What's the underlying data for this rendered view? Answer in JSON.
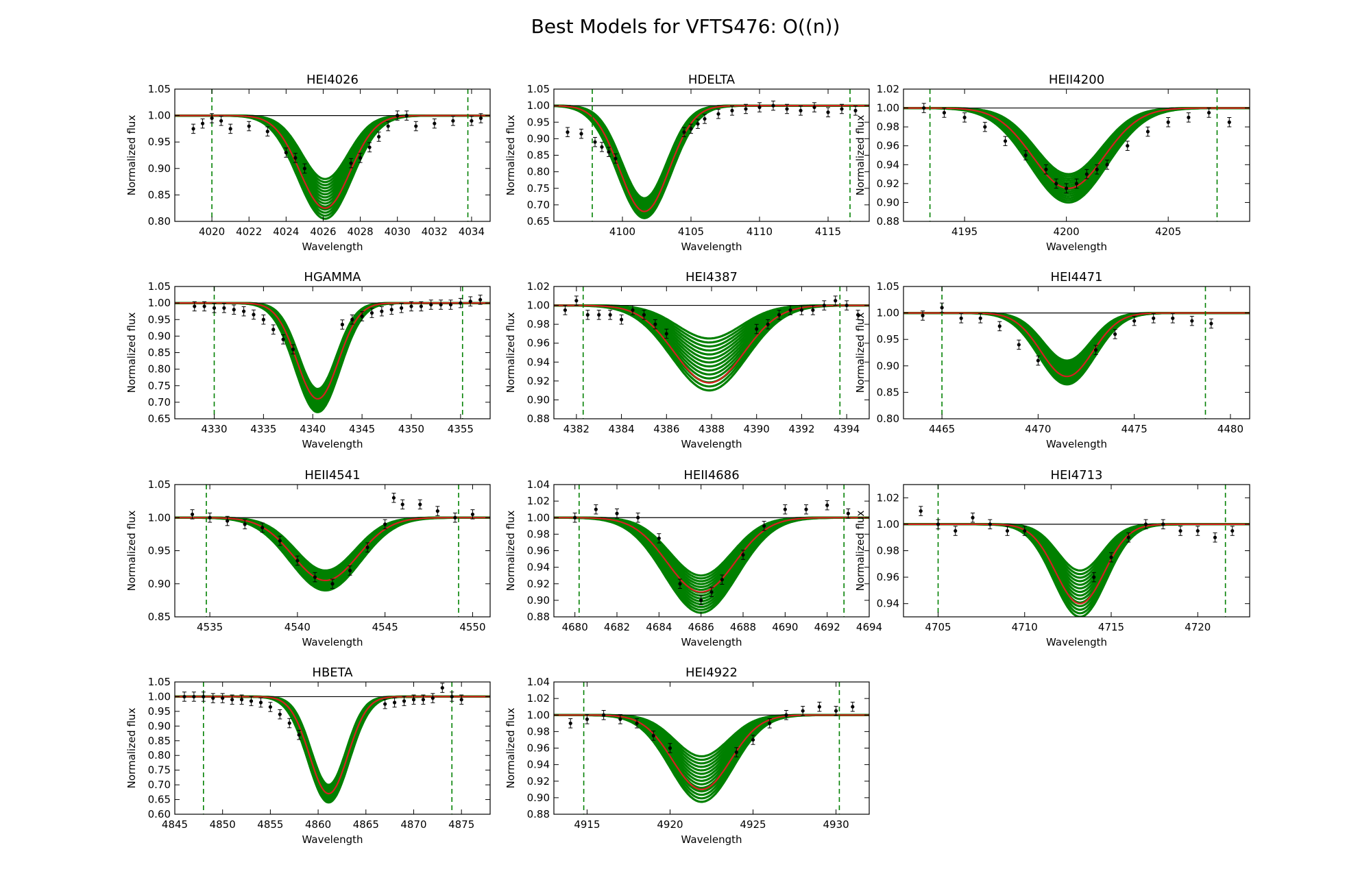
{
  "figure_title": "Best Models for VFTS476: O((n))",
  "colors": {
    "model_band": "#008000",
    "best_fit": "#d62020",
    "continuum": "#000000",
    "data": "#000000",
    "window": "#008000"
  },
  "chart_data": [
    {
      "type": "line",
      "title": "HEI4026",
      "xlabel": "Wavelength",
      "ylabel": "Normalized flux",
      "xlim": [
        4018,
        4035
      ],
      "ylim": [
        0.8,
        1.05
      ],
      "xticks": [
        4020,
        4022,
        4024,
        4026,
        4028,
        4030,
        4032,
        4034
      ],
      "yticks": [
        0.8,
        0.85,
        0.9,
        0.95,
        1.0,
        1.05
      ],
      "ytick_decimals": 2,
      "window": [
        4020,
        4033.8
      ],
      "line": {
        "center": 4026.1,
        "sigma": 1.35,
        "best_depth": 0.175,
        "min_depth": 0.12,
        "max_depth": 0.195
      },
      "data": {
        "x": [
          4019,
          4019.5,
          4020,
          4020.5,
          4021,
          4022,
          4023,
          4024,
          4024.5,
          4025,
          4027.5,
          4028,
          4028.5,
          4029,
          4029.5,
          4030,
          4030.5,
          4031,
          4032,
          4033,
          4034,
          4034.5
        ],
        "y": [
          0.975,
          0.985,
          0.995,
          0.99,
          0.975,
          0.98,
          0.97,
          0.93,
          0.92,
          0.9,
          0.91,
          0.92,
          0.94,
          0.96,
          0.98,
          1.0,
          1.0,
          0.98,
          0.985,
          0.99,
          0.99,
          0.995
        ]
      }
    },
    {
      "type": "line",
      "title": "HDELTA",
      "xlabel": "Wavelength",
      "ylabel": "Normalized flux",
      "xlim": [
        4095,
        4118
      ],
      "ylim": [
        0.65,
        1.05
      ],
      "xticks": [
        4100,
        4105,
        4110,
        4115
      ],
      "yticks": [
        0.65,
        0.7,
        0.75,
        0.8,
        0.85,
        0.9,
        0.95,
        1.0,
        1.05
      ],
      "ytick_decimals": 2,
      "window": [
        4097.8,
        4116.6
      ],
      "line": {
        "center": 4101.6,
        "sigma": 1.8,
        "best_depth": 0.32,
        "min_depth": 0.28,
        "max_depth": 0.34
      },
      "data": {
        "x": [
          4096,
          4097,
          4098,
          4098.5,
          4099,
          4099.5,
          4104.5,
          4105,
          4105.5,
          4106,
          4107,
          4108,
          4109,
          4110,
          4111,
          4112,
          4113,
          4114,
          4115,
          4116,
          4117
        ],
        "y": [
          0.92,
          0.915,
          0.89,
          0.875,
          0.86,
          0.84,
          0.92,
          0.93,
          0.945,
          0.96,
          0.975,
          0.985,
          0.99,
          0.995,
          1.0,
          0.99,
          0.985,
          0.995,
          0.98,
          0.99,
          0.985
        ]
      }
    },
    {
      "type": "line",
      "title": "HEII4200",
      "xlabel": "Wavelength",
      "ylabel": "Normalized flux",
      "xlim": [
        4192,
        4209
      ],
      "ylim": [
        0.88,
        1.02
      ],
      "xticks": [
        4195,
        4200,
        4205
      ],
      "yticks": [
        0.88,
        0.9,
        0.92,
        0.94,
        0.96,
        0.98,
        1.0,
        1.02
      ],
      "ytick_decimals": 2,
      "window": [
        4193.3,
        4207.4
      ],
      "line": {
        "center": 4200.1,
        "sigma": 1.75,
        "best_depth": 0.085,
        "min_depth": 0.07,
        "max_depth": 0.1
      },
      "data": {
        "x": [
          4193,
          4194,
          4195,
          4196,
          4197,
          4198,
          4199,
          4199.5,
          4200,
          4200.5,
          4201,
          4201.5,
          4202,
          4203,
          4204,
          4205,
          4206,
          4207,
          4208
        ],
        "y": [
          1.0,
          0.995,
          0.99,
          0.98,
          0.965,
          0.95,
          0.935,
          0.92,
          0.915,
          0.92,
          0.93,
          0.935,
          0.94,
          0.96,
          0.975,
          0.985,
          0.99,
          0.995,
          0.985
        ]
      }
    },
    {
      "type": "line",
      "title": "HGAMMA",
      "xlabel": "Wavelength",
      "ylabel": "Normalized flux",
      "xlim": [
        4326,
        4358
      ],
      "ylim": [
        0.65,
        1.05
      ],
      "xticks": [
        4330,
        4335,
        4340,
        4345,
        4350,
        4355
      ],
      "yticks": [
        0.65,
        0.7,
        0.75,
        0.8,
        0.85,
        0.9,
        0.95,
        1.0,
        1.05
      ],
      "ytick_decimals": 2,
      "window": [
        4330.0,
        4355.2
      ],
      "line": {
        "center": 4340.5,
        "sigma": 2.1,
        "best_depth": 0.29,
        "min_depth": 0.26,
        "max_depth": 0.33
      },
      "data": {
        "x": [
          4328,
          4329,
          4330,
          4331,
          4332,
          4333,
          4334,
          4335,
          4336,
          4337,
          4338,
          4343,
          4344,
          4345,
          4346,
          4347,
          4348,
          4349,
          4350,
          4351,
          4352,
          4353,
          4354,
          4355,
          4356,
          4357
        ],
        "y": [
          0.99,
          0.99,
          0.985,
          0.985,
          0.98,
          0.975,
          0.965,
          0.95,
          0.92,
          0.89,
          0.86,
          0.935,
          0.95,
          0.96,
          0.97,
          0.975,
          0.98,
          0.985,
          0.99,
          0.99,
          0.995,
          0.995,
          0.995,
          1.0,
          1.005,
          1.01
        ]
      }
    },
    {
      "type": "line",
      "title": "HEI4387",
      "xlabel": "Wavelength",
      "ylabel": "Normalized flux",
      "xlim": [
        4381,
        4395
      ],
      "ylim": [
        0.88,
        1.02
      ],
      "xticks": [
        4382,
        4384,
        4386,
        4388,
        4390,
        4392,
        4394
      ],
      "yticks": [
        0.88,
        0.9,
        0.92,
        0.94,
        0.96,
        0.98,
        1.0,
        1.02
      ],
      "ytick_decimals": 2,
      "window": [
        4382.3,
        4393.7
      ],
      "line": {
        "center": 4387.9,
        "sigma": 1.55,
        "best_depth": 0.082,
        "min_depth": 0.035,
        "max_depth": 0.09
      },
      "data": {
        "x": [
          4381.5,
          4382,
          4382.5,
          4383,
          4383.5,
          4384,
          4384.5,
          4385,
          4385.5,
          4386,
          4390,
          4390.5,
          4391,
          4391.5,
          4392,
          4392.5,
          4393,
          4393.5,
          4394,
          4394.5
        ],
        "y": [
          0.995,
          1.005,
          0.99,
          0.99,
          0.99,
          0.985,
          0.995,
          0.99,
          0.98,
          0.97,
          0.975,
          0.98,
          0.99,
          0.995,
          0.995,
          0.995,
          1.0,
          1.005,
          1.0,
          0.99
        ]
      }
    },
    {
      "type": "line",
      "title": "HEI4471",
      "xlabel": "Wavelength",
      "ylabel": "Normalized flux",
      "xlim": [
        4463,
        4481
      ],
      "ylim": [
        0.8,
        1.05
      ],
      "xticks": [
        4465,
        4470,
        4475,
        4480
      ],
      "yticks": [
        0.8,
        0.85,
        0.9,
        0.95,
        1.0,
        1.05
      ],
      "ytick_decimals": 2,
      "window": [
        4465.0,
        4478.7
      ],
      "line": {
        "center": 4471.5,
        "sigma": 1.35,
        "best_depth": 0.12,
        "min_depth": 0.09,
        "max_depth": 0.135
      },
      "data": {
        "x": [
          4464,
          4465,
          4466,
          4467,
          4468,
          4469,
          4470,
          4473,
          4474,
          4475,
          4476,
          4477,
          4478,
          4479
        ],
        "y": [
          0.995,
          1.01,
          0.99,
          0.99,
          0.975,
          0.94,
          0.91,
          0.93,
          0.96,
          0.985,
          0.99,
          0.99,
          0.985,
          0.98
        ]
      }
    },
    {
      "type": "line",
      "title": "HEII4541",
      "xlabel": "Wavelength",
      "ylabel": "Normalized flux",
      "xlim": [
        4533,
        4551
      ],
      "ylim": [
        0.85,
        1.05
      ],
      "xticks": [
        4535,
        4540,
        4545,
        4550
      ],
      "yticks": [
        0.85,
        0.9,
        0.95,
        1.0,
        1.05
      ],
      "ytick_decimals": 2,
      "window": [
        4534.8,
        4549.2
      ],
      "line": {
        "center": 4541.6,
        "sigma": 1.85,
        "best_depth": 0.095,
        "min_depth": 0.08,
        "max_depth": 0.11
      },
      "data": {
        "x": [
          4534,
          4535,
          4536,
          4537,
          4538,
          4539,
          4540,
          4541,
          4542,
          4543,
          4544,
          4545,
          4545.5,
          4546,
          4547,
          4548,
          4549,
          4550
        ],
        "y": [
          1.005,
          1.0,
          0.995,
          0.99,
          0.985,
          0.965,
          0.935,
          0.91,
          0.9,
          0.92,
          0.955,
          0.99,
          1.03,
          1.02,
          1.02,
          1.01,
          1.0,
          1.005
        ]
      }
    },
    {
      "type": "line",
      "title": "HEII4686",
      "xlabel": "Wavelength",
      "ylabel": "Normalized flux",
      "xlim": [
        4679,
        4694
      ],
      "ylim": [
        0.88,
        1.04
      ],
      "xticks": [
        4680,
        4682,
        4684,
        4686,
        4688,
        4690,
        4692,
        4694
      ],
      "yticks": [
        0.88,
        0.9,
        0.92,
        0.94,
        0.96,
        0.98,
        1.0,
        1.02,
        1.04
      ],
      "ytick_decimals": 2,
      "window": [
        4680.2,
        4692.8
      ],
      "line": {
        "center": 4686.0,
        "sigma": 1.6,
        "best_depth": 0.09,
        "min_depth": 0.07,
        "max_depth": 0.115
      },
      "data": {
        "x": [
          4680,
          4681,
          4682,
          4683,
          4684,
          4685,
          4686,
          4686.5,
          4687,
          4688,
          4689,
          4690,
          4691,
          4692,
          4693
        ],
        "y": [
          1.0,
          1.01,
          1.005,
          1.0,
          0.975,
          0.92,
          0.9,
          0.91,
          0.925,
          0.955,
          0.99,
          1.01,
          1.01,
          1.015,
          1.005
        ]
      }
    },
    {
      "type": "line",
      "title": "HEI4713",
      "xlabel": "Wavelength",
      "ylabel": "Normalized flux",
      "xlim": [
        4703,
        4723
      ],
      "ylim": [
        0.93,
        1.03
      ],
      "xticks": [
        4705,
        4710,
        4715,
        4720
      ],
      "yticks": [
        0.94,
        0.96,
        0.98,
        1.0,
        1.02
      ],
      "ytick_decimals": 2,
      "window": [
        4705.0,
        4721.6
      ],
      "line": {
        "center": 4713.2,
        "sigma": 1.4,
        "best_depth": 0.06,
        "min_depth": 0.035,
        "max_depth": 0.07
      },
      "data": {
        "x": [
          4704,
          4705,
          4706,
          4707,
          4708,
          4709,
          4710,
          4714,
          4715,
          4716,
          4717,
          4718,
          4719,
          4720,
          4721,
          4722
        ],
        "y": [
          1.01,
          1.0,
          0.995,
          1.005,
          1.0,
          0.995,
          0.995,
          0.96,
          0.975,
          0.99,
          1.0,
          1.0,
          0.995,
          0.995,
          0.99,
          0.995
        ]
      }
    },
    {
      "type": "line",
      "title": "HBETA",
      "xlabel": "Wavelength",
      "ylabel": "Normalized flux",
      "xlim": [
        4845,
        4878
      ],
      "ylim": [
        0.6,
        1.05
      ],
      "xticks": [
        4845,
        4850,
        4855,
        4860,
        4865,
        4870,
        4875
      ],
      "yticks": [
        0.6,
        0.65,
        0.7,
        0.75,
        0.8,
        0.85,
        0.9,
        0.95,
        1.0,
        1.05
      ],
      "ytick_decimals": 2,
      "window": [
        4848.0,
        4874.0
      ],
      "line": {
        "center": 4861.1,
        "sigma": 2.0,
        "best_depth": 0.33,
        "min_depth": 0.3,
        "max_depth": 0.36
      },
      "data": {
        "x": [
          4846,
          4847,
          4848,
          4849,
          4850,
          4851,
          4852,
          4853,
          4854,
          4855,
          4856,
          4857,
          4858,
          4867,
          4868,
          4869,
          4870,
          4871,
          4872,
          4873,
          4874,
          4875
        ],
        "y": [
          1.0,
          1.0,
          1.0,
          0.995,
          0.995,
          0.99,
          0.99,
          0.985,
          0.98,
          0.965,
          0.94,
          0.91,
          0.87,
          0.975,
          0.98,
          0.985,
          0.99,
          0.99,
          0.995,
          1.03,
          1.0,
          0.99
        ]
      }
    },
    {
      "type": "line",
      "title": "HEI4922",
      "xlabel": "Wavelength",
      "ylabel": "Normalized flux",
      "xlim": [
        4913,
        4932
      ],
      "ylim": [
        0.88,
        1.04
      ],
      "xticks": [
        4915,
        4920,
        4925,
        4930
      ],
      "yticks": [
        0.88,
        0.9,
        0.92,
        0.94,
        0.96,
        0.98,
        1.0,
        1.02,
        1.04
      ],
      "ytick_decimals": 2,
      "window": [
        4914.8,
        4930.2
      ],
      "line": {
        "center": 4921.9,
        "sigma": 1.75,
        "best_depth": 0.09,
        "min_depth": 0.05,
        "max_depth": 0.105
      },
      "data": {
        "x": [
          4914,
          4915,
          4916,
          4917,
          4918,
          4919,
          4920,
          4924,
          4925,
          4926,
          4927,
          4928,
          4929,
          4930,
          4931
        ],
        "y": [
          0.99,
          0.995,
          1.0,
          0.995,
          0.99,
          0.975,
          0.96,
          0.955,
          0.97,
          0.99,
          1.0,
          1.005,
          1.01,
          1.005,
          1.01
        ]
      }
    }
  ]
}
